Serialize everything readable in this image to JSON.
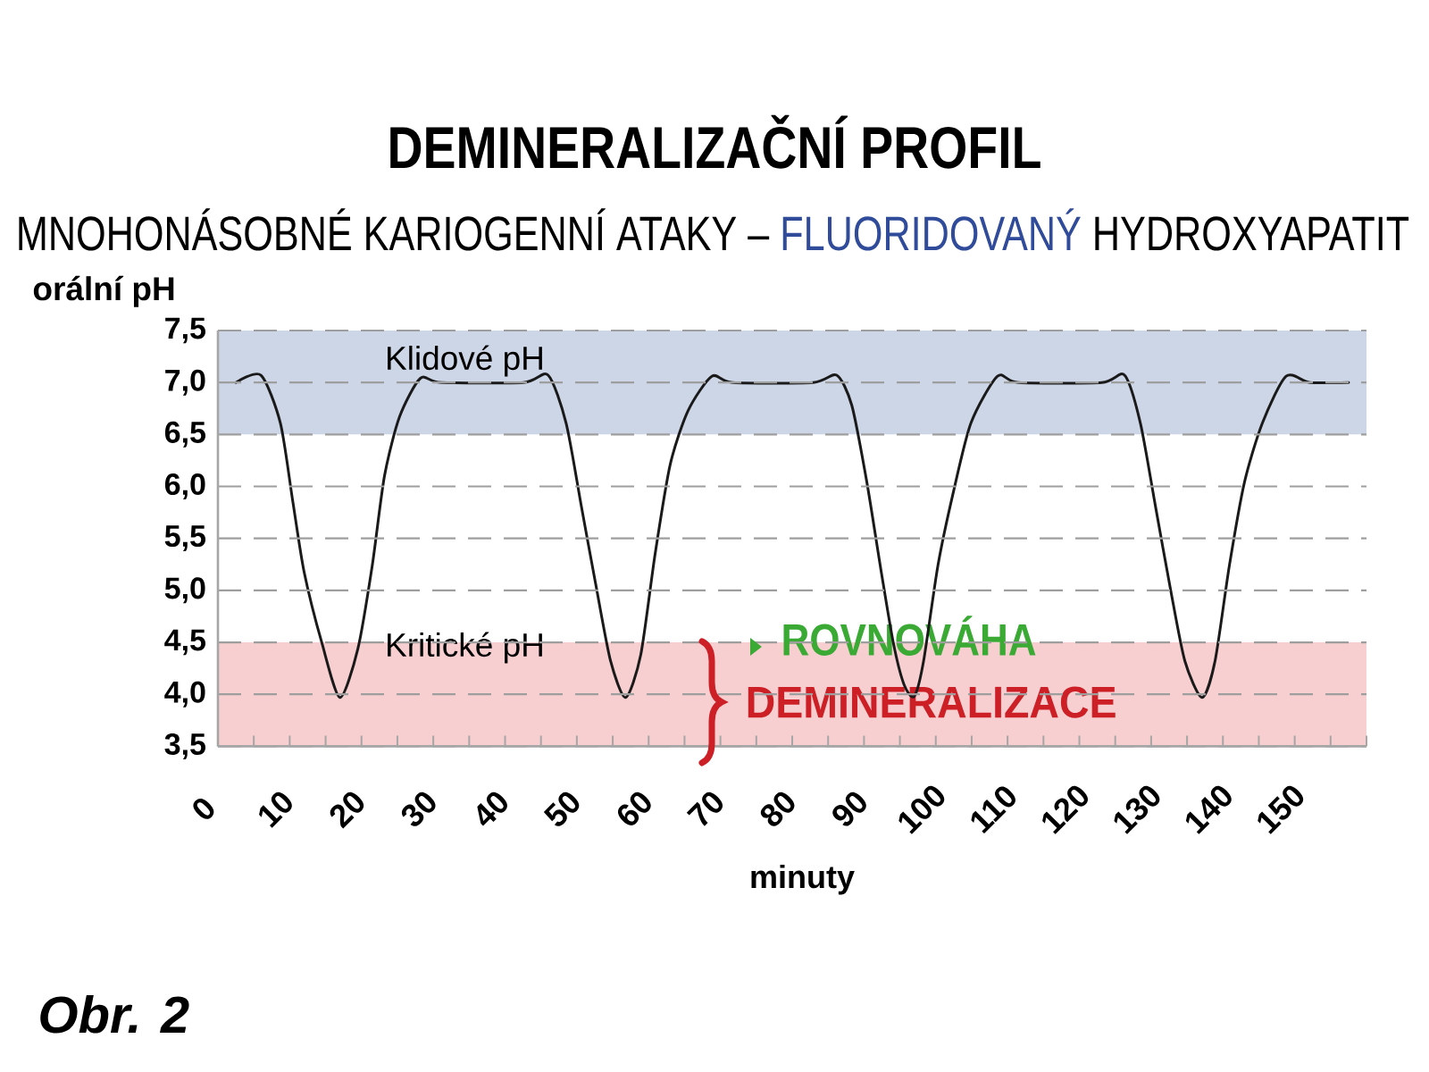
{
  "chart_data": {
    "type": "line",
    "title": "DEMINERALIZAČNÍ PROFIL",
    "subtitle": "MNOHONÁSOBNÉ KARIOGENNÍ ATAKY – **FLUORIDOVANÝ** HYDROXYAPATIT",
    "xlabel": "minuty",
    "ylabel": "orální pH",
    "x": [
      2.5,
      6,
      8.7,
      10.4,
      12,
      14.5,
      17,
      19.5,
      21.5,
      23.2,
      25.3,
      28.2,
      31.1,
      42.6,
      46,
      48.5,
      50.6,
      52.6,
      54.7,
      56.8,
      58.9,
      60.9,
      63,
      65.5,
      68.8,
      71.7,
      82.9,
      86.2,
      88.3,
      90.4,
      92.4,
      94.1,
      95.6,
      97,
      98.3,
      100.3,
      102.4,
      104.9,
      108.6,
      111.5,
      123.1,
      126.3,
      128.5,
      130.6,
      132.7,
      134.7,
      137.1,
      138.9,
      140.9,
      143,
      145.5,
      148.8,
      152.1,
      157.5
    ],
    "series": [
      {
        "color": "#1a1a1a",
        "values": [
          7.0,
          7.07,
          6.61,
          5.87,
          5.18,
          4.49,
          3.97,
          4.44,
          5.24,
          6.1,
          6.67,
          7.04,
          7.0,
          7.0,
          7.07,
          6.61,
          5.82,
          5.07,
          4.32,
          3.97,
          4.38,
          5.35,
          6.21,
          6.73,
          7.06,
          7.0,
          7.0,
          7.07,
          6.78,
          6.04,
          5.18,
          4.49,
          4.09,
          3.98,
          4.32,
          5.24,
          5.93,
          6.61,
          7.06,
          7.0,
          7.0,
          7.07,
          6.61,
          5.81,
          5.01,
          4.32,
          3.97,
          4.32,
          5.24,
          6.04,
          6.61,
          7.06,
          7.0,
          7.0
        ]
      }
    ],
    "xlim": [
      0,
      160
    ],
    "ylim": [
      3.5,
      7.5
    ],
    "xticks": [
      0,
      {
        "value": 5,
        "label": null
      },
      10,
      {
        "value": 15,
        "label": null
      },
      20,
      {
        "value": 25,
        "label": null
      },
      30,
      {
        "value": 35,
        "label": null
      },
      40,
      {
        "value": 45,
        "label": null
      },
      50,
      {
        "value": 55,
        "label": null
      },
      60,
      {
        "value": 65,
        "label": null
      },
      70,
      {
        "value": 75,
        "label": null
      },
      80,
      {
        "value": 85,
        "label": null
      },
      90,
      {
        "value": 95,
        "label": null
      },
      100,
      {
        "value": 105,
        "label": null
      },
      110,
      {
        "value": 115,
        "label": null
      },
      120,
      {
        "value": 125,
        "label": null
      },
      130,
      {
        "value": 135,
        "label": null
      },
      140,
      {
        "value": 145,
        "label": null
      },
      150,
      {
        "value": 155,
        "label": null
      },
      {
        "value": 160,
        "label": null
      }
    ],
    "yticks": [
      {
        "value": 3.5,
        "label": "3,5"
      },
      {
        "value": 4.0,
        "label": "4,0"
      },
      {
        "value": 4.5,
        "label": "4,5"
      },
      {
        "value": 5.0,
        "label": "5,0"
      },
      {
        "value": 5.5,
        "label": "5,5"
      },
      {
        "value": 6.0,
        "label": "6,0"
      },
      {
        "value": 6.5,
        "label": "6,5"
      },
      {
        "value": 7.0,
        "label": "7,0"
      },
      {
        "value": 7.5,
        "label": "7,5"
      }
    ],
    "grid": "y",
    "bands": [
      {
        "axis": "y",
        "from": 6.5,
        "to": 7.5,
        "label": "Klidové pH",
        "color": "#cdd6e7"
      },
      {
        "axis": "y",
        "from": 3.5,
        "to": 4.5,
        "label": "Kritické pH",
        "color": "#f8cfd0"
      }
    ],
    "annotations": [
      "ROVNOVÁHA",
      "DEMINERALIZACE",
      "Obr. 2"
    ]
  }
}
